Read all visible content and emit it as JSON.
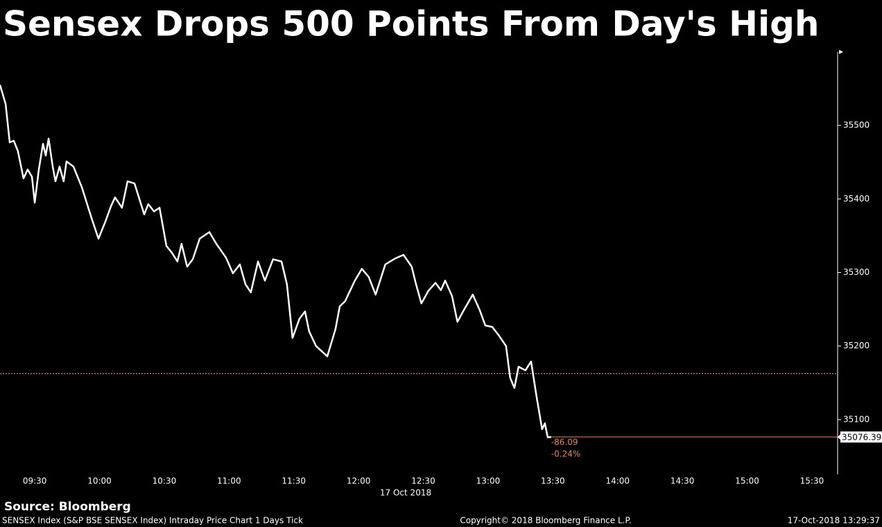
{
  "chart_data": {
    "type": "line",
    "title": "Sensex Drops 500 Points From Day's High",
    "x_date_label": "17 Oct 2018",
    "source": "Source: Bloomberg",
    "footer_left": "SENSEX Index (S&P BSE SENSEX Index) Intraday Price Chart 1 Days  Tick",
    "footer_center": "Copyright© 2018 Bloomberg Finance L.P.",
    "footer_right": "17-Oct-2018 13:29:37",
    "x": [
      553.9,
      556.5,
      558.4,
      560.3,
      562.2,
      564.8,
      566.7,
      568.7,
      570,
      571.9,
      573.8,
      575.1,
      576.4,
      578.3,
      579.6,
      581.5,
      583.4,
      584.7,
      587.9,
      591.8,
      596.3,
      599.5,
      602.7,
      605.3,
      607.2,
      610.4,
      613,
      616.2,
      620.7,
      622.6,
      625.2,
      627.8,
      631,
      633.5,
      636.1,
      638,
      640.6,
      643.2,
      646.4,
      650.9,
      654.1,
      658.6,
      661.8,
      665,
      667.6,
      670.1,
      673.4,
      676.6,
      680.4,
      684.3,
      686.8,
      689.4,
      692.6,
      695.2,
      697.1,
      700.3,
      705.5,
      709.3,
      711.3,
      713.8,
      715.7,
      718.3,
      721.5,
      724.7,
      727.9,
      732.4,
      736.9,
      740.8,
      744.6,
      746.6,
      749.1,
      752.3,
      755.6,
      758.1,
      760.1,
      763.3,
      765.8,
      768.4,
      772.9,
      776.1,
      778.7,
      781.9,
      785.1,
      788.3,
      790.2,
      792.2,
      794.1,
      797.3,
      799.9,
      802.4,
      805,
      806.3,
      807.6,
      809.2
    ],
    "series": [
      {
        "name": "SENSEX Index",
        "color": "#ffffff",
        "values": [
          35555,
          35529,
          35477,
          35479,
          35465,
          35428,
          35440,
          35430,
          35395,
          35440,
          35475,
          35459,
          35482,
          35444,
          35424,
          35444,
          35424,
          35451,
          35444,
          35416,
          35374,
          35346,
          35369,
          35390,
          35402,
          35388,
          35424,
          35421,
          35379,
          35393,
          35383,
          35388,
          35336,
          35327,
          35315,
          35339,
          35308,
          35318,
          35346,
          35355,
          35339,
          35320,
          35299,
          35311,
          35284,
          35273,
          35315,
          35289,
          35318,
          35315,
          35284,
          35211,
          35237,
          35247,
          35220,
          35200,
          35186,
          35223,
          35254,
          35261,
          35273,
          35289,
          35305,
          35294,
          35270,
          35311,
          35319,
          35324,
          35308,
          35284,
          35258,
          35275,
          35286,
          35276,
          35289,
          35268,
          35233,
          35247,
          35270,
          35249,
          35228,
          35226,
          35214,
          35200,
          35157,
          35143,
          35172,
          35167,
          35179,
          35132,
          35087,
          35095,
          35076,
          35076.39
        ]
      }
    ],
    "last_value": 35076.39,
    "prev_close": 35162.48,
    "change_labels": [
      "-86.09",
      "-0.24%"
    ],
    "ref_color": "#e8874a",
    "xlim": [
      553.9,
      941.9
    ],
    "xticks": [
      {
        "value": 570,
        "label": "09:30"
      },
      {
        "value": 600,
        "label": "10:00"
      },
      {
        "value": 630,
        "label": "10:30"
      },
      {
        "value": 660,
        "label": "11:00"
      },
      {
        "value": 690,
        "label": "11:30"
      },
      {
        "value": 720,
        "label": "12:00"
      },
      {
        "value": 750,
        "label": "12:30"
      },
      {
        "value": 780,
        "label": "13:00"
      },
      {
        "value": 810,
        "label": "13:30"
      },
      {
        "value": 840,
        "label": "14:00"
      },
      {
        "value": 870,
        "label": "14:30"
      },
      {
        "value": 900,
        "label": "15:00"
      },
      {
        "value": 930,
        "label": "15:30"
      }
    ],
    "ylim": [
      35025.6,
      35599.8
    ],
    "yticks": [
      35100,
      35200,
      35300,
      35400,
      35500
    ]
  }
}
